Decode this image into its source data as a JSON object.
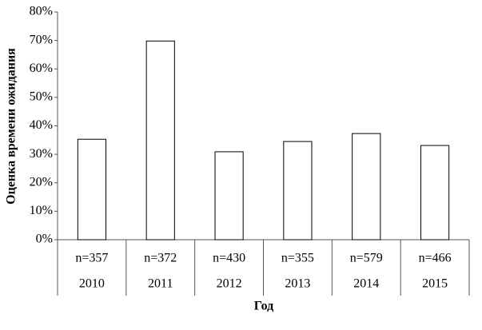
{
  "chart_data": {
    "type": "bar",
    "y_axis_label": "Оценка времени ожидания",
    "x_axis_label": "Год",
    "categories": [
      "2010",
      "2011",
      "2012",
      "2013",
      "2014",
      "2015"
    ],
    "sample_sizes": [
      "n=357",
      "n=372",
      "n=430",
      "n=355",
      "n=579",
      "n=466"
    ],
    "values": [
      35.3,
      69.8,
      30.9,
      34.5,
      37.3,
      33.1
    ],
    "color": "#ffffff",
    "edge_color": "#000000",
    "ylim": [
      0,
      80
    ],
    "yticks": [
      {
        "value": 0,
        "label": "0%"
      },
      {
        "value": 10,
        "label": "10%"
      },
      {
        "value": 20,
        "label": "20%"
      },
      {
        "value": 30,
        "label": "30%"
      },
      {
        "value": 40,
        "label": "40%"
      },
      {
        "value": 50,
        "label": "50%"
      },
      {
        "value": 60,
        "label": "60%"
      },
      {
        "value": 70,
        "label": "70%"
      },
      {
        "value": 80,
        "label": "80%"
      }
    ],
    "grid": false
  }
}
